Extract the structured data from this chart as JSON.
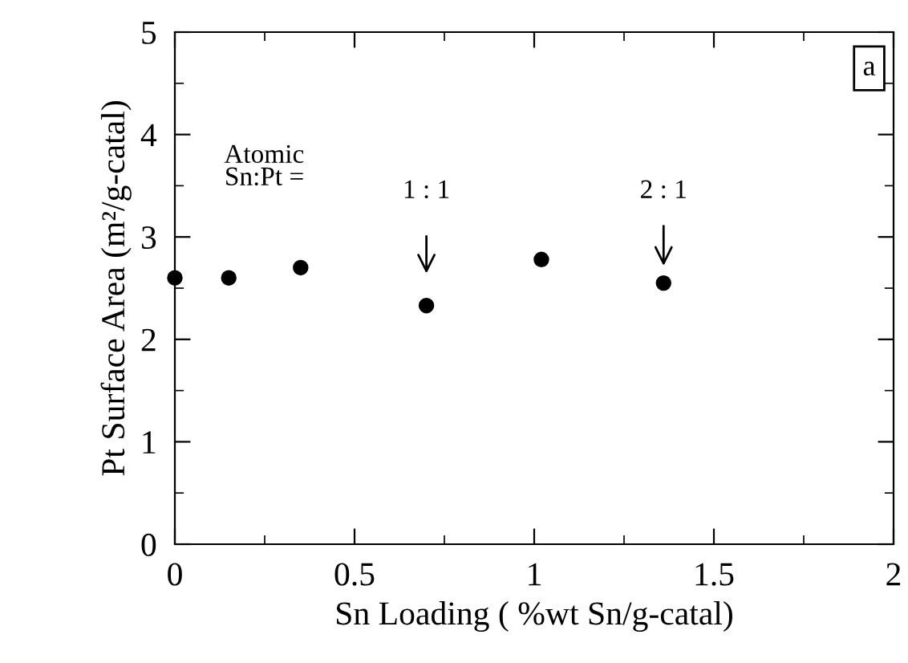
{
  "chart_data": {
    "type": "scatter",
    "xlabel": "Sn Loading ( %wt Sn/g-catal)",
    "ylabel": "Pt Surface Area (m²/g-catal)",
    "x": [
      0,
      0.15,
      0.35,
      0.7,
      1.02,
      1.36
    ],
    "values": [
      2.6,
      2.6,
      2.7,
      2.33,
      2.78,
      2.55
    ],
    "color": "#000000",
    "marker": "circle",
    "xlim": [
      0,
      2
    ],
    "ylim": [
      0,
      5
    ],
    "xticks": [
      0,
      0.5,
      1,
      1.5,
      2
    ],
    "yticks": [
      0,
      1,
      2,
      3,
      4,
      5
    ],
    "grid": false,
    "legend": false,
    "annotations": [
      "Atomic\nSn:Pt =",
      "1 : 1",
      "2 : 1",
      "a"
    ]
  }
}
